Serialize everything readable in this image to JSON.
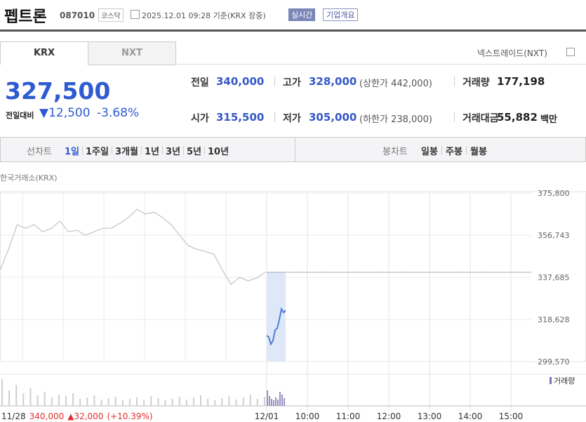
{
  "header": {
    "name": "펩트론",
    "code": "087010",
    "market": "코스닥",
    "timestamp": "2025.12.01 09:28 기준(KRX 장중)",
    "buttons": [
      "실시간",
      "기업개요"
    ]
  },
  "tabs": [
    "KRX",
    "NXT"
  ],
  "nxt_link": "넥스트레이드(NXT)",
  "price": {
    "current": "327,500",
    "change_label": "전일대비",
    "change": "▼12,500",
    "change_pct": "-3.68%"
  },
  "stats": [
    [
      {
        "label": "전일",
        "value": "340,000"
      },
      {
        "label": "고가",
        "value": "328,000",
        "extra": "(상한가 442,000)"
      },
      {
        "label": "거래량",
        "value": "177,198"
      }
    ],
    [
      {
        "label": "시가",
        "value": "315,500"
      },
      {
        "label": "저가",
        "value": "305,000",
        "extra": "(하한가 238,000)"
      },
      {
        "label": "거래대금",
        "value": "55,882",
        "unit": "백만"
      }
    ]
  ],
  "periods": {
    "line_label": "선차트",
    "line": [
      "1일",
      "1주일",
      "3개월",
      "1년",
      "3년",
      "5년",
      "10년"
    ],
    "candle_label": "봉차트",
    "candle": [
      "일봉",
      "주봉",
      "월봉"
    ]
  },
  "chart_data": {
    "type": "line",
    "source": "한국거래소(KRX)",
    "ylim": [
      299570,
      375800
    ],
    "yticks": [
      {
        "value": 375800,
        "label": "375,800"
      },
      {
        "value": 356743,
        "label": "356,743"
      },
      {
        "value": 337685,
        "label": "337,685"
      },
      {
        "value": 318628,
        "label": "318,628"
      },
      {
        "value": 299570,
        "label": "299,570"
      }
    ],
    "prev_close": 340000,
    "x_labels": [
      "12/01",
      "10:00",
      "11:00",
      "12:00",
      "13:00",
      "14:00",
      "15:00"
    ],
    "series": [
      {
        "color": "#c8c8c8",
        "values": [
          340900,
          350400,
          361500,
          359900,
          361500,
          358300,
          359900,
          363100,
          358300,
          359000,
          356700,
          358300,
          359900,
          359900,
          362100,
          364700,
          368500,
          366300,
          367200,
          364700,
          361500,
          356700,
          352000,
          350400,
          349400,
          348200,
          340900,
          334500,
          337700,
          336100,
          337400,
          340000
        ]
      },
      {
        "color": "#4f7fd4",
        "values": [
          311300,
          310700,
          307500,
          309100,
          313900,
          314600,
          318600,
          323400,
          321800,
          322800
        ]
      }
    ],
    "volume_label": "거래량",
    "volume": [
      {
        "color": "#cfcfcf",
        "values": [
          38,
          22,
          30,
          18,
          25,
          15,
          20,
          12,
          16,
          14,
          18,
          10,
          12,
          15,
          9,
          11,
          13,
          8,
          10,
          12,
          9,
          14,
          11,
          8,
          10,
          13,
          9,
          12,
          15,
          10,
          8,
          11,
          14,
          9,
          12,
          16,
          10,
          13
        ]
      },
      {
        "color": "#9b8fc4",
        "values": [
          22,
          14,
          10,
          8,
          12,
          9,
          20,
          16,
          11
        ]
      }
    ],
    "footer": {
      "date": "11/28",
      "close": "340,000",
      "change": "▲32,000",
      "change_pct": "(+10.39%)"
    }
  }
}
